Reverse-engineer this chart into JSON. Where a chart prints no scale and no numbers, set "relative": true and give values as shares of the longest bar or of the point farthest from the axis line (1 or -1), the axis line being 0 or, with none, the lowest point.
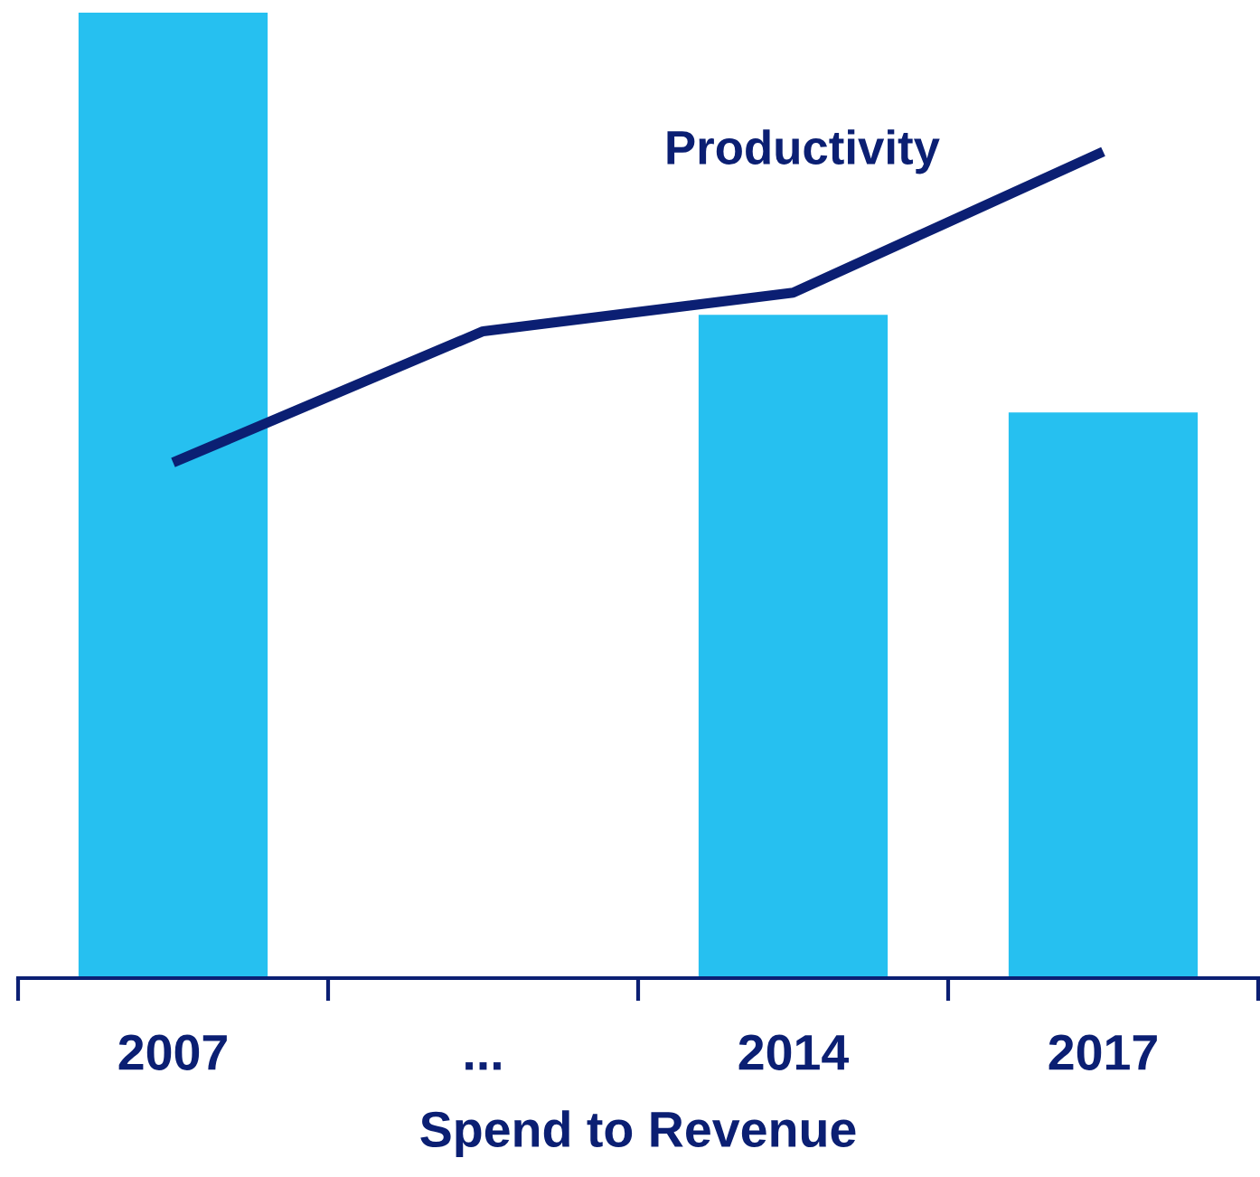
{
  "chart_data": {
    "type": "bar",
    "relative": true,
    "xlabel": "Spend to Revenue",
    "categories": [
      "2007",
      "...",
      "2014",
      "2017"
    ],
    "series": [
      {
        "color": "#26c0f0",
        "values": [
          1,
          null,
          0.687,
          0.586
        ]
      },
      {
        "type": "line",
        "name": "Productivity",
        "color": "#0b1f73",
        "values": [
          0.534,
          0.67,
          0.71,
          0.856
        ]
      }
    ],
    "grid": false,
    "legend": false,
    "tick_labels": "x"
  }
}
